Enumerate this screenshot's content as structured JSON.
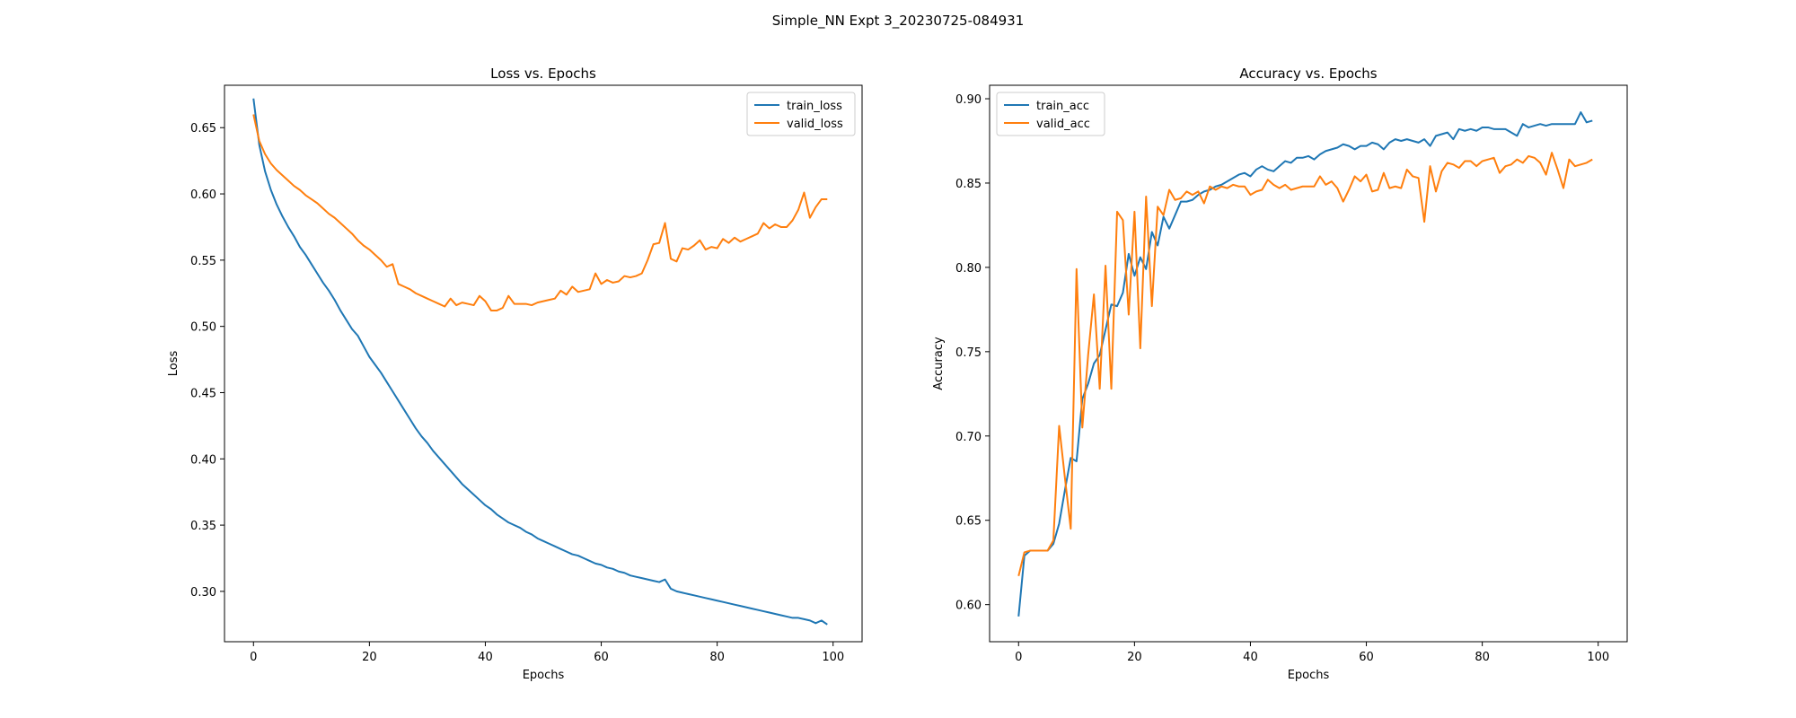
{
  "figure": {
    "suptitle": "Simple_NN Expt 3_20230725-084931"
  },
  "colors": {
    "train": "#1f77b4",
    "valid": "#ff7f0e"
  },
  "chart_data": [
    {
      "type": "line",
      "title": "Loss vs. Epochs",
      "xlabel": "Epochs",
      "ylabel": "Loss",
      "xlim": [
        -5,
        105
      ],
      "ylim": [
        0.262,
        0.682
      ],
      "xticks": [
        0,
        20,
        40,
        60,
        80,
        100
      ],
      "yticks": [
        0.3,
        0.35,
        0.4,
        0.45,
        0.5,
        0.55,
        0.6,
        0.65
      ],
      "legend": "upper-right",
      "grid": false,
      "x": [
        0,
        1,
        2,
        3,
        4,
        5,
        6,
        7,
        8,
        9,
        10,
        11,
        12,
        13,
        14,
        15,
        16,
        17,
        18,
        19,
        20,
        21,
        22,
        23,
        24,
        25,
        26,
        27,
        28,
        29,
        30,
        31,
        32,
        33,
        34,
        35,
        36,
        37,
        38,
        39,
        40,
        41,
        42,
        43,
        44,
        45,
        46,
        47,
        48,
        49,
        50,
        51,
        52,
        53,
        54,
        55,
        56,
        57,
        58,
        59,
        60,
        61,
        62,
        63,
        64,
        65,
        66,
        67,
        68,
        69,
        70,
        71,
        72,
        73,
        74,
        75,
        76,
        77,
        78,
        79,
        80,
        81,
        82,
        83,
        84,
        85,
        86,
        87,
        88,
        89,
        90,
        91,
        92,
        93,
        94,
        95,
        96,
        97,
        98,
        99
      ],
      "series": [
        {
          "name": "train_loss",
          "values": [
            0.672,
            0.637,
            0.617,
            0.603,
            0.592,
            0.583,
            0.575,
            0.568,
            0.56,
            0.554,
            0.547,
            0.54,
            0.533,
            0.527,
            0.52,
            0.512,
            0.505,
            0.498,
            0.493,
            0.485,
            0.477,
            0.471,
            0.465,
            0.458,
            0.451,
            0.444,
            0.437,
            0.43,
            0.423,
            0.417,
            0.412,
            0.406,
            0.401,
            0.396,
            0.391,
            0.386,
            0.381,
            0.377,
            0.373,
            0.369,
            0.365,
            0.362,
            0.358,
            0.355,
            0.352,
            0.35,
            0.348,
            0.345,
            0.343,
            0.34,
            0.338,
            0.336,
            0.334,
            0.332,
            0.33,
            0.328,
            0.327,
            0.325,
            0.323,
            0.321,
            0.32,
            0.318,
            0.317,
            0.315,
            0.314,
            0.312,
            0.311,
            0.31,
            0.309,
            0.308,
            0.307,
            0.309,
            0.302,
            0.3,
            0.299,
            0.298,
            0.297,
            0.296,
            0.295,
            0.294,
            0.293,
            0.292,
            0.291,
            0.29,
            0.289,
            0.288,
            0.287,
            0.286,
            0.285,
            0.284,
            0.283,
            0.282,
            0.281,
            0.28,
            0.28,
            0.279,
            0.278,
            0.276,
            0.278,
            0.275
          ]
        },
        {
          "name": "valid_loss",
          "values": [
            0.66,
            0.64,
            0.63,
            0.623,
            0.618,
            0.614,
            0.61,
            0.606,
            0.603,
            0.599,
            0.596,
            0.593,
            0.589,
            0.585,
            0.582,
            0.578,
            0.574,
            0.57,
            0.565,
            0.561,
            0.558,
            0.554,
            0.55,
            0.545,
            0.547,
            0.532,
            0.53,
            0.528,
            0.525,
            0.523,
            0.521,
            0.519,
            0.517,
            0.515,
            0.521,
            0.516,
            0.518,
            0.517,
            0.516,
            0.523,
            0.519,
            0.512,
            0.512,
            0.514,
            0.523,
            0.517,
            0.517,
            0.517,
            0.516,
            0.518,
            0.519,
            0.52,
            0.521,
            0.527,
            0.524,
            0.53,
            0.526,
            0.527,
            0.528,
            0.54,
            0.532,
            0.535,
            0.533,
            0.534,
            0.538,
            0.537,
            0.538,
            0.54,
            0.55,
            0.562,
            0.563,
            0.578,
            0.551,
            0.549,
            0.559,
            0.558,
            0.561,
            0.565,
            0.558,
            0.56,
            0.559,
            0.566,
            0.563,
            0.567,
            0.564,
            0.566,
            0.568,
            0.57,
            0.578,
            0.574,
            0.577,
            0.575,
            0.575,
            0.58,
            0.588,
            0.601,
            0.582,
            0.59,
            0.596,
            0.596
          ]
        }
      ]
    },
    {
      "type": "line",
      "title": "Accuracy vs. Epochs",
      "xlabel": "Epochs",
      "ylabel": "Accuracy",
      "xlim": [
        -5,
        105
      ],
      "ylim": [
        0.578,
        0.908
      ],
      "xticks": [
        0,
        20,
        40,
        60,
        80,
        100
      ],
      "yticks": [
        0.6,
        0.65,
        0.7,
        0.75,
        0.8,
        0.85,
        0.9
      ],
      "legend": "upper-left",
      "grid": false,
      "x": [
        0,
        1,
        2,
        3,
        4,
        5,
        6,
        7,
        8,
        9,
        10,
        11,
        12,
        13,
        14,
        15,
        16,
        17,
        18,
        19,
        20,
        21,
        22,
        23,
        24,
        25,
        26,
        27,
        28,
        29,
        30,
        31,
        32,
        33,
        34,
        35,
        36,
        37,
        38,
        39,
        40,
        41,
        42,
        43,
        44,
        45,
        46,
        47,
        48,
        49,
        50,
        51,
        52,
        53,
        54,
        55,
        56,
        57,
        58,
        59,
        60,
        61,
        62,
        63,
        64,
        65,
        66,
        67,
        68,
        69,
        70,
        71,
        72,
        73,
        74,
        75,
        76,
        77,
        78,
        79,
        80,
        81,
        82,
        83,
        84,
        85,
        86,
        87,
        88,
        89,
        90,
        91,
        92,
        93,
        94,
        95,
        96,
        97,
        98,
        99
      ],
      "series": [
        {
          "name": "train_acc",
          "values": [
            0.593,
            0.629,
            0.632,
            0.632,
            0.632,
            0.632,
            0.636,
            0.648,
            0.668,
            0.687,
            0.685,
            0.722,
            0.731,
            0.743,
            0.748,
            0.763,
            0.778,
            0.777,
            0.785,
            0.808,
            0.795,
            0.806,
            0.799,
            0.821,
            0.813,
            0.83,
            0.823,
            0.831,
            0.839,
            0.839,
            0.84,
            0.843,
            0.845,
            0.846,
            0.848,
            0.849,
            0.851,
            0.853,
            0.855,
            0.856,
            0.854,
            0.858,
            0.86,
            0.858,
            0.857,
            0.86,
            0.863,
            0.862,
            0.865,
            0.865,
            0.866,
            0.864,
            0.867,
            0.869,
            0.87,
            0.871,
            0.873,
            0.872,
            0.87,
            0.872,
            0.872,
            0.874,
            0.873,
            0.87,
            0.874,
            0.876,
            0.875,
            0.876,
            0.875,
            0.874,
            0.876,
            0.872,
            0.878,
            0.879,
            0.88,
            0.876,
            0.882,
            0.881,
            0.882,
            0.881,
            0.883,
            0.883,
            0.882,
            0.882,
            0.882,
            0.88,
            0.878,
            0.885,
            0.883,
            0.884,
            0.885,
            0.884,
            0.885,
            0.885,
            0.885,
            0.885,
            0.885,
            0.892,
            0.886,
            0.887
          ]
        },
        {
          "name": "valid_acc",
          "values": [
            0.617,
            0.631,
            0.632,
            0.632,
            0.632,
            0.632,
            0.638,
            0.706,
            0.675,
            0.645,
            0.799,
            0.705,
            0.748,
            0.784,
            0.728,
            0.801,
            0.728,
            0.833,
            0.828,
            0.772,
            0.833,
            0.752,
            0.842,
            0.777,
            0.836,
            0.831,
            0.846,
            0.84,
            0.841,
            0.845,
            0.843,
            0.845,
            0.838,
            0.848,
            0.846,
            0.848,
            0.847,
            0.849,
            0.848,
            0.848,
            0.843,
            0.845,
            0.846,
            0.852,
            0.849,
            0.847,
            0.849,
            0.846,
            0.847,
            0.848,
            0.848,
            0.848,
            0.854,
            0.849,
            0.851,
            0.847,
            0.839,
            0.846,
            0.854,
            0.851,
            0.855,
            0.845,
            0.846,
            0.856,
            0.847,
            0.848,
            0.847,
            0.858,
            0.854,
            0.853,
            0.827,
            0.86,
            0.845,
            0.857,
            0.862,
            0.861,
            0.859,
            0.863,
            0.863,
            0.86,
            0.863,
            0.864,
            0.865,
            0.856,
            0.86,
            0.861,
            0.864,
            0.862,
            0.866,
            0.865,
            0.862,
            0.855,
            0.868,
            0.858,
            0.847,
            0.864,
            0.86,
            0.861,
            0.862,
            0.864
          ]
        }
      ]
    }
  ]
}
